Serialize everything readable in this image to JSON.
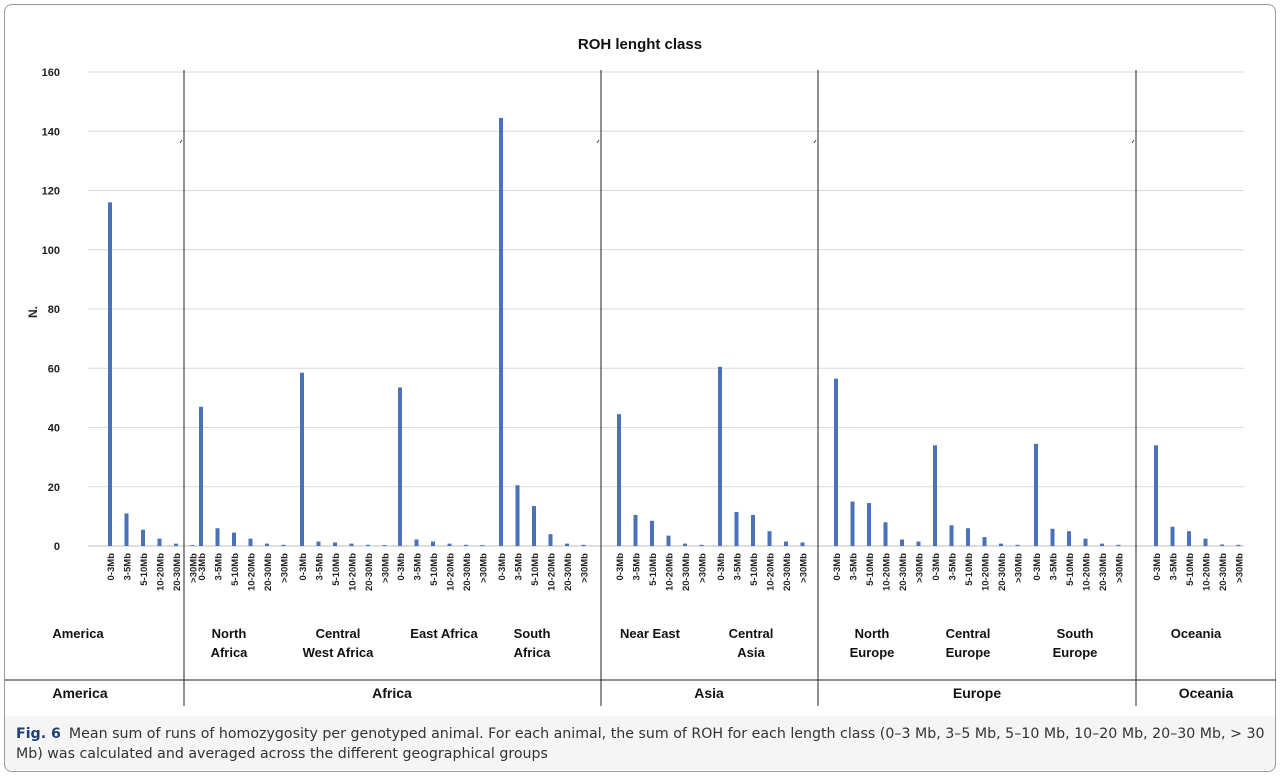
{
  "chart_data": {
    "type": "bar",
    "title": "ROH lenght class",
    "ylabel": "N.",
    "xlabel": "",
    "ylim": [
      0,
      160
    ],
    "yticks": [
      0,
      20,
      40,
      60,
      80,
      100,
      120,
      140,
      160
    ],
    "grid": true,
    "bar_color": "#4a72b8",
    "length_classes": [
      "0-3Mb",
      "3-5Mb",
      "5-10Mb",
      "10-20Mb",
      "20-30Mb",
      ">30Mb"
    ],
    "groups": [
      {
        "name": "America",
        "continent": "America",
        "values": [
          116,
          11,
          5.5,
          2.5,
          0.8,
          0.3
        ]
      },
      {
        "name": "North Africa",
        "continent": "Africa",
        "values": [
          47,
          6,
          4.5,
          2.5,
          0.8,
          0.4
        ]
      },
      {
        "name": "Central West Africa",
        "continent": "Africa",
        "values": [
          58.5,
          1.5,
          1.2,
          0.8,
          0.4,
          0.3
        ]
      },
      {
        "name": "East Africa",
        "continent": "Africa",
        "values": [
          53.5,
          2.2,
          1.5,
          0.8,
          0.4,
          0.3
        ]
      },
      {
        "name": "South Africa",
        "continent": "Africa",
        "values": [
          144.5,
          20.5,
          13.5,
          4,
          0.8,
          0.4
        ]
      },
      {
        "name": "Near East",
        "continent": "Asia",
        "values": [
          44.5,
          10.5,
          8.5,
          3.5,
          0.8,
          0.4
        ]
      },
      {
        "name": "Central Asia",
        "continent": "Asia",
        "values": [
          60.5,
          11.5,
          10.5,
          5,
          1.5,
          1.2
        ]
      },
      {
        "name": "North Europe",
        "continent": "Europe",
        "values": [
          56.5,
          15,
          14.5,
          8,
          2.2,
          1.5
        ]
      },
      {
        "name": "Central Europe",
        "continent": "Europe",
        "values": [
          34,
          7,
          6,
          3,
          0.8,
          0.4
        ]
      },
      {
        "name": "South Europe",
        "continent": "Europe",
        "values": [
          34.5,
          5.8,
          5,
          2.5,
          0.8,
          0.4
        ]
      },
      {
        "name": "Oceania",
        "continent": "Oceania",
        "values": [
          34,
          6.5,
          5,
          2.5,
          0.5,
          0.4
        ]
      }
    ],
    "group_labels": [
      [
        "America"
      ],
      [
        "North",
        "Africa"
      ],
      [
        "Central",
        "West Africa"
      ],
      [
        "East Africa"
      ],
      [
        "South",
        "Africa"
      ],
      [
        "Near East"
      ],
      [
        "Central",
        "Asia"
      ],
      [
        "North",
        "Europe"
      ],
      [
        "Central",
        "Europe"
      ],
      [
        "South",
        "Europe"
      ],
      [
        "Oceania"
      ]
    ],
    "continents": [
      "America",
      "Africa",
      "Asia",
      "Europe",
      "Oceania"
    ]
  },
  "caption": {
    "label": "Fig. 6",
    "text": "Mean sum of runs of homozygosity per genotyped animal. For each animal, the sum of ROH for each length class (0–3 Mb, 3–5 Mb, 5–10 Mb, 10–20 Mb, 20–30 Mb, > 30 Mb) was calculated and averaged across the different geographical groups"
  }
}
